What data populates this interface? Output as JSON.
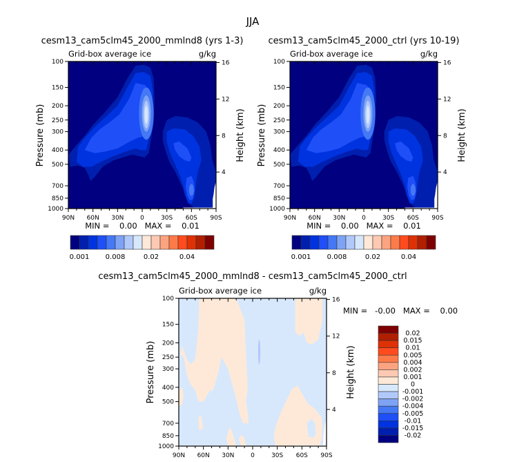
{
  "figure_title": "JJA",
  "chart_data": [
    {
      "type": "heatmap",
      "id": "panel-mmlnd8",
      "title": "cesm13_cam5clm45_2000_mmlnd8 (yrs 1-3)",
      "left_subtitle": "Grid-box average ice",
      "right_subtitle": "g/kg",
      "xlabel": "",
      "ylabel": "Pressure (mb)",
      "y2label": "Height (km)",
      "x_ticks": [
        "90N",
        "60N",
        "30N",
        "0",
        "30S",
        "60S",
        "90S"
      ],
      "x_range": [
        90,
        -90
      ],
      "y_ticks": [
        100,
        150,
        200,
        250,
        300,
        400,
        500,
        700,
        850,
        1000
      ],
      "y_range": [
        100,
        1000
      ],
      "y2_ticks": [
        16,
        12,
        8,
        4
      ],
      "min_max": "MIN =    0.00   MAX =    0.01",
      "min": 0.0,
      "max": 0.01,
      "background_level": 0.001,
      "features": [
        {
          "name": "tropical-upper-maximum",
          "lat_center": -5,
          "p_center": 240,
          "peak_g_per_kg": 0.01
        },
        {
          "name": "nh-midlatitude-band",
          "lat_range": [
            90,
            0
          ],
          "p_range": [
            150,
            650
          ],
          "value_g_per_kg": 0.004
        },
        {
          "name": "sh-storm-track-upper",
          "lat_center": -45,
          "p_center": 420,
          "value_g_per_kg": 0.005
        },
        {
          "name": "sh-low-level-maximum",
          "lat_center": -60,
          "p_center": 740,
          "value_g_per_kg": 0.006
        }
      ],
      "missing_region": "near-surface Antarctic (60S-90S, below terrain)"
    },
    {
      "type": "heatmap",
      "id": "panel-ctrl",
      "title": "cesm13_cam5clm45_2000_ctrl (yrs 10-19)",
      "left_subtitle": "Grid-box average ice",
      "right_subtitle": "g/kg",
      "xlabel": "",
      "ylabel": "Pressure (mb)",
      "y2label": "Height (km)",
      "x_ticks": [
        "90N",
        "60N",
        "30N",
        "0",
        "30S",
        "60S",
        "90S"
      ],
      "x_range": [
        90,
        -90
      ],
      "y_ticks": [
        100,
        150,
        200,
        250,
        300,
        400,
        500,
        700,
        850,
        1000
      ],
      "y_range": [
        100,
        1000
      ],
      "y2_ticks": [
        16,
        12,
        8,
        4
      ],
      "min_max": "MIN =    0.00   MAX =    0.01",
      "min": 0.0,
      "max": 0.01,
      "background_level": 0.001,
      "features": [
        {
          "name": "tropical-upper-maximum",
          "lat_center": -5,
          "p_center": 240,
          "peak_g_per_kg": 0.01
        },
        {
          "name": "nh-midlatitude-band",
          "lat_range": [
            90,
            0
          ],
          "p_range": [
            150,
            650
          ],
          "value_g_per_kg": 0.004
        },
        {
          "name": "sh-storm-track-upper",
          "lat_center": -45,
          "p_center": 420,
          "value_g_per_kg": 0.005
        },
        {
          "name": "sh-low-level-maximum",
          "lat_center": -60,
          "p_center": 740,
          "value_g_per_kg": 0.006
        }
      ],
      "missing_region": "near-surface Antarctic (60S-90S, below terrain)"
    },
    {
      "type": "heatmap",
      "id": "panel-diff",
      "title": "cesm13_cam5clm45_2000_mmlnd8 - cesm13_cam5clm45_2000_ctrl",
      "left_subtitle": "Grid-box average ice",
      "right_subtitle": "g/kg",
      "xlabel": "",
      "ylabel": "Pressure (mb)",
      "y2label": "Height (km)",
      "x_ticks": [
        "90N",
        "60N",
        "30N",
        "0",
        "30S",
        "60S",
        "90S"
      ],
      "x_range": [
        90,
        -90
      ],
      "y_ticks": [
        100,
        150,
        200,
        250,
        300,
        400,
        500,
        700,
        850,
        1000
      ],
      "y_range": [
        100,
        1000
      ],
      "y2_ticks": [
        16,
        12,
        8,
        4
      ],
      "min_max": "MIN =   -0.00   MAX =    0.00",
      "min": -0.0,
      "max": 0.0,
      "background_level": "-0.001 to 0",
      "features": [
        {
          "name": "positive-anomaly-nh",
          "lat_range": [
            75,
            5
          ],
          "p_range": [
            100,
            700
          ],
          "range_g_per_kg": "0 to 0.001"
        },
        {
          "name": "positive-anomaly-sh",
          "lat_range": [
            -30,
            -85
          ],
          "p_range": [
            380,
            1000
          ],
          "range_g_per_kg": "0 to 0.001"
        },
        {
          "name": "positive-anomaly-polar-upper",
          "lat_range": [
            -50,
            -85
          ],
          "p_range": [
            100,
            210
          ],
          "range_g_per_kg": "0 to 0.001"
        },
        {
          "name": "negative-spot-tropics",
          "lat_center": -8,
          "p_center": 230,
          "range_g_per_kg": "-0.002 to -0.001"
        }
      ],
      "missing_region": "near-surface Antarctic (60S-90S, below terrain)"
    }
  ],
  "colorbars": {
    "main": {
      "orientation": "horizontal",
      "colors": [
        "#000080",
        "#001fae",
        "#0033e0",
        "#1f4ff7",
        "#4478f5",
        "#7ea3f5",
        "#b1c9fa",
        "#d7e8fd",
        "#fee9d8",
        "#fdc9b3",
        "#fca380",
        "#fe7b49",
        "#ff4b1d",
        "#df3106",
        "#b11f00",
        "#7f0000"
      ],
      "tick_labels": [
        {
          "after_box": 0,
          "label": "0.001"
        },
        {
          "after_box": 4,
          "label": "0.008"
        },
        {
          "after_box": 8,
          "label": "0.02"
        },
        {
          "after_box": 12,
          "label": "0.04"
        }
      ]
    },
    "diff": {
      "orientation": "vertical",
      "colors_top_to_bottom": [
        "#7f0000",
        "#b11f00",
        "#df3106",
        "#ff4b1d",
        "#fe7b49",
        "#fca380",
        "#fdc9b3",
        "#fee9d8",
        "#d7e8fd",
        "#b1c9fa",
        "#7ea3f5",
        "#4478f5",
        "#1f4ff7",
        "#0033e0",
        "#001fae",
        "#000080"
      ],
      "levels_top_to_bottom": [
        "0.02",
        "0.015",
        "0.01",
        "0.005",
        "0.004",
        "0.002",
        "0.001",
        "0",
        "-0.001",
        "-0.002",
        "-0.004",
        "-0.005",
        "-0.01",
        "-0.015",
        "-0.02"
      ]
    }
  },
  "palette": {
    "bg_dark": "#000080",
    "l1": "#001fae",
    "l2": "#0033e0",
    "l3": "#1f4ff7",
    "l4": "#4478f5",
    "l5": "#7ea3f5",
    "l6": "#b1c9fa",
    "l7": "#d7e8fd",
    "pos1": "#fee9d8"
  }
}
